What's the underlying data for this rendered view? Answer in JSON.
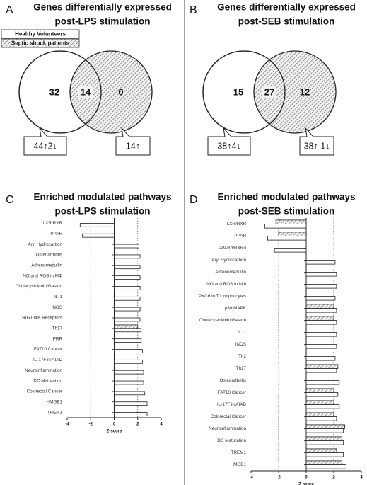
{
  "chart_data": [
    {
      "type": "venn",
      "label": "A",
      "title": [
        "Genes differentially expressed",
        "post-LPS stimulation"
      ],
      "legend": [
        "Healthy Volunteers",
        "Septic shock patients"
      ],
      "values": [
        32,
        14,
        0
      ],
      "callouts": [
        "44↑2↓",
        "14↑"
      ]
    },
    {
      "type": "venn",
      "label": "B",
      "title": [
        "Genes differentially expressed",
        "post-SEB stimulation"
      ],
      "values": [
        15,
        27,
        12
      ],
      "callouts": [
        "38↑4↓",
        "38↑ 1↓"
      ]
    },
    {
      "type": "hbar",
      "label": "C",
      "title": [
        "Enriched modulated pathways",
        "post-LPS stimulation"
      ],
      "categories": [
        "LXR/RXR",
        "PPAR",
        "Aryl Hydrocarbon",
        "Osteoarthritis",
        "Adrenomedullin",
        "NO and ROS in MΦ",
        "Cholecystokinin/Gastrin",
        "IL-1",
        "iNOS",
        "RIG1-like Receptors",
        "Th17",
        "PRR",
        "FAT10 Cancer",
        "IL-17F in AIAD",
        "Neuroinflammation",
        "DC Maturation",
        "Colorectal Cancer",
        "HMGB1",
        "TREM1"
      ],
      "series": [
        {
          "fill": "hatch",
          "values": [
            null,
            null,
            null,
            null,
            null,
            null,
            null,
            null,
            null,
            null,
            2.0,
            null,
            null,
            null,
            null,
            null,
            null,
            null,
            null
          ]
        },
        {
          "fill": "white",
          "values": [
            -2.9,
            -2.7,
            2.1,
            2.2,
            2.2,
            2.2,
            2.2,
            2.2,
            2.2,
            2.2,
            2.3,
            2.3,
            2.4,
            2.4,
            2.5,
            2.5,
            2.6,
            2.8,
            2.8
          ]
        }
      ],
      "xlim": [
        -4,
        4
      ],
      "xticks": [
        -4,
        -2,
        0,
        2,
        4
      ],
      "ref_lines": [
        -2,
        2
      ],
      "xlabel": "Z-score"
    },
    {
      "type": "hbar",
      "label": "D",
      "title": [
        "Enriched modulated pathways",
        "post-SEB stimulation"
      ],
      "categories": [
        "LXR/RXR",
        "PPAR",
        "PPARα/RXRα",
        "Aryl Hydrocarbon",
        "Adrenomedullin",
        "NO and ROS in MΦ",
        "PKCθ in T Lymphocytes",
        "p38 MAPK",
        "Cholecystokinin/Gastrin",
        "IL-1",
        "iNOS",
        "Th2",
        "Th17",
        "Osteoarthritis",
        "FAT10 Cancer",
        "IL-17F in AIAD",
        "Colorectal Cancer",
        "Neuroinflammation",
        "DC Maturation",
        "TREM1",
        "HMGB1"
      ],
      "series": [
        {
          "fill": "hatch",
          "values": [
            -2.2,
            -2.0,
            null,
            null,
            null,
            null,
            null,
            2.0,
            2.0,
            null,
            null,
            null,
            2.3,
            null,
            2.0,
            2.0,
            2.0,
            2.8,
            2.6,
            2.2,
            2.6
          ]
        },
        {
          "fill": "white",
          "values": [
            -3.0,
            -2.8,
            -2.3,
            2.1,
            2.2,
            2.2,
            2.1,
            2.2,
            2.2,
            2.2,
            2.2,
            2.1,
            2.2,
            2.4,
            2.3,
            2.4,
            2.2,
            2.7,
            2.7,
            2.7,
            2.9
          ]
        }
      ],
      "xlim": [
        -4,
        4
      ],
      "xticks": [
        -4,
        -2,
        0,
        2,
        4
      ],
      "ref_lines": [
        -2,
        2
      ],
      "xlabel": "Z-score"
    }
  ]
}
